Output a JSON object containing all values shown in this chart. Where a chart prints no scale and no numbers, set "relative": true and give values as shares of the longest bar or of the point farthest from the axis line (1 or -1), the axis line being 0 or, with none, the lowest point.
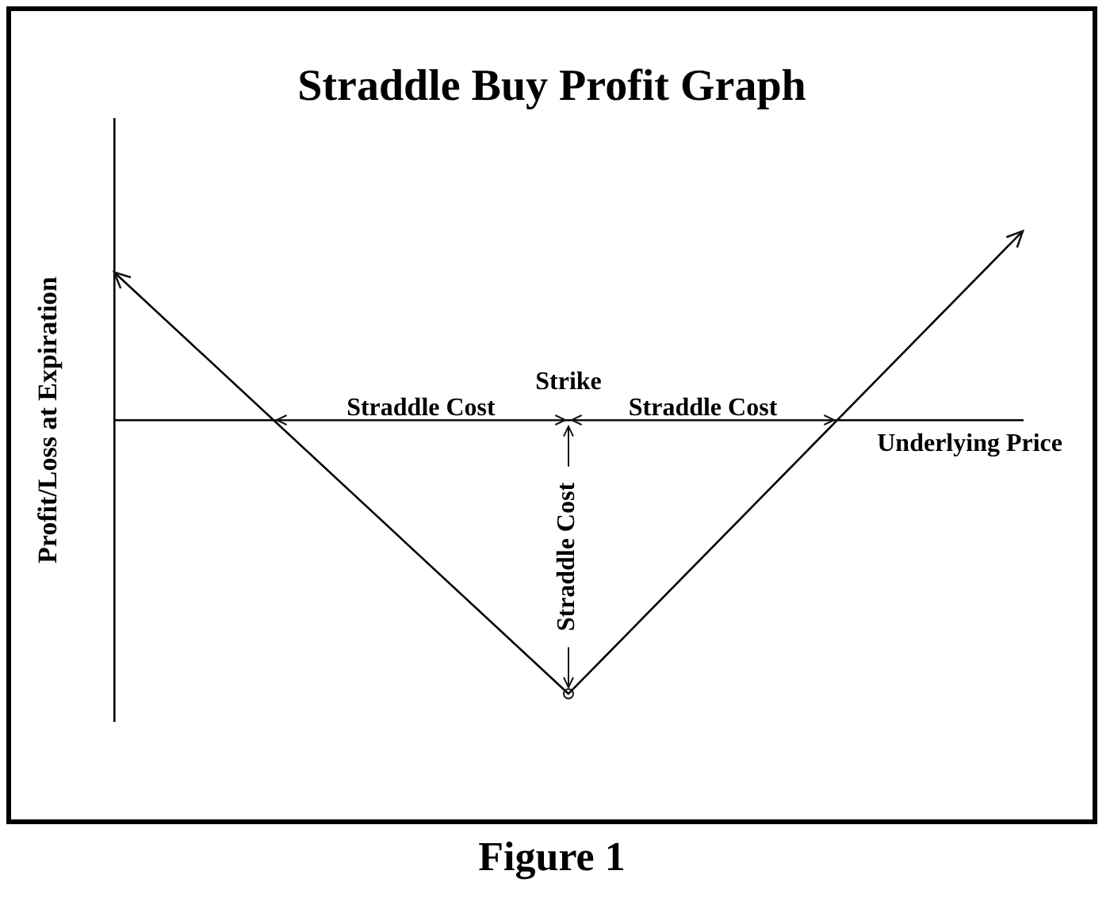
{
  "chart_data": {
    "type": "line",
    "title": "Straddle Buy Profit Graph",
    "xlabel": "Underlying Price",
    "ylabel": "Profit/Loss at Expiration",
    "relative": true,
    "categories": [
      null,
      null,
      null
    ],
    "values": [
      0.54,
      -1,
      0.69
    ],
    "color": "#000000",
    "annotations": [
      "Strike",
      "Straddle Cost",
      "Straddle Cost",
      "Straddle Cost",
      "Figure 1"
    ]
  }
}
